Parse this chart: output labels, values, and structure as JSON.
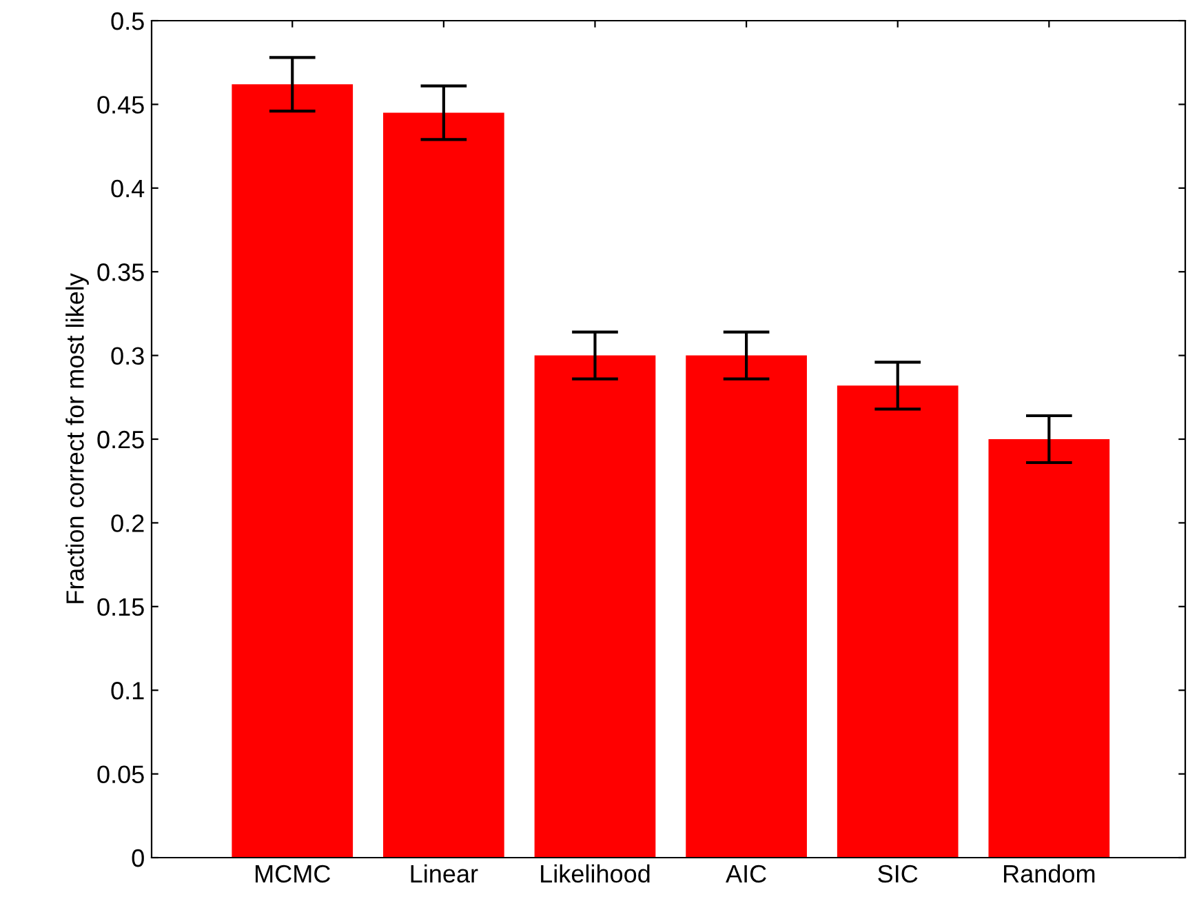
{
  "chart_data": {
    "type": "bar",
    "ylabel": "Fraction correct for most likely",
    "categories": [
      "MCMC",
      "Linear",
      "Likelihood",
      "AIC",
      "SIC",
      "Random"
    ],
    "series": [
      {
        "color": "#ff0000",
        "values": [
          0.462,
          0.445,
          0.3,
          0.3,
          0.282,
          0.25
        ],
        "errors": [
          0.016,
          0.016,
          0.014,
          0.014,
          0.014,
          0.014
        ]
      }
    ],
    "ylim": [
      0,
      0.5
    ],
    "yticks": [
      0,
      0.05,
      0.1,
      0.15,
      0.2,
      0.25,
      0.3,
      0.35,
      0.4,
      0.45,
      0.5
    ],
    "grid": false,
    "legend": false
  }
}
